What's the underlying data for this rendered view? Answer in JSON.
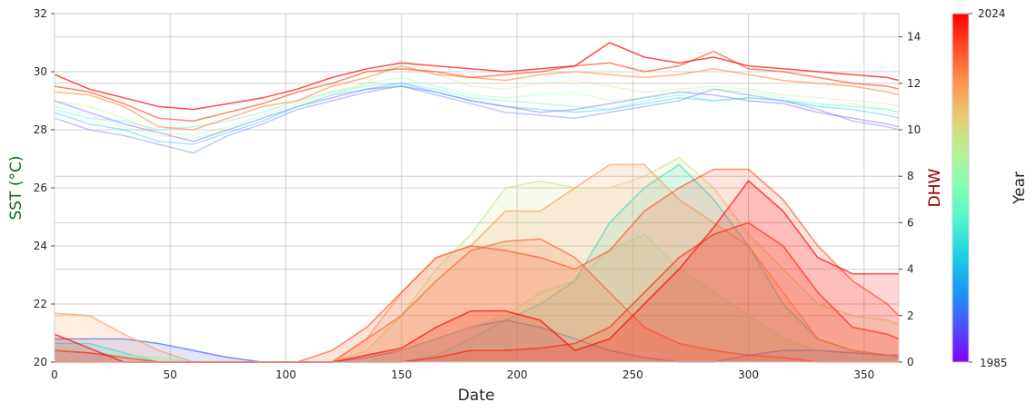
{
  "chart_data": {
    "type": "line",
    "xlabel": "Date",
    "ylabel_left": "SST (°C)",
    "ylabel_right": "DHW",
    "xlim": [
      0,
      365
    ],
    "ylim_left": [
      20,
      32
    ],
    "ylim_right": [
      0,
      15
    ],
    "xticks": [
      0,
      50,
      100,
      150,
      200,
      250,
      300,
      350
    ],
    "yticks_left": [
      20,
      22,
      24,
      26,
      28,
      30,
      32
    ],
    "yticks_right": [
      0,
      2,
      4,
      6,
      8,
      10,
      12,
      14
    ],
    "grid": true,
    "colors": {
      "left_label": "#0b6b0b",
      "right_label": "#8b0000",
      "grid": "#d0d0d0"
    },
    "colorbar": {
      "label": "Year",
      "min": 1985,
      "max": 2024,
      "min_label": "1985",
      "max_label": "2024",
      "cmap": "rainbow",
      "placement": "right"
    },
    "x": [
      0,
      15,
      30,
      45,
      60,
      75,
      90,
      105,
      120,
      135,
      150,
      165,
      180,
      195,
      210,
      225,
      240,
      255,
      270,
      285,
      300,
      315,
      330,
      345,
      360,
      365
    ],
    "sst_series": [
      {
        "year": 1987,
        "values": [
          29.0,
          28.6,
          28.2,
          27.9,
          27.6,
          28.0,
          28.4,
          28.8,
          29.1,
          29.4,
          29.5,
          29.3,
          29.0,
          28.8,
          28.6,
          28.7,
          28.9,
          29.1,
          29.3,
          29.2,
          29.0,
          28.9,
          28.6,
          28.4,
          28.2,
          28.1
        ]
      },
      {
        "year": 1990,
        "values": [
          28.4,
          28.0,
          27.8,
          27.5,
          27.2,
          27.8,
          28.2,
          28.7,
          29.0,
          29.3,
          29.5,
          29.2,
          28.9,
          28.6,
          28.5,
          28.4,
          28.6,
          28.8,
          29.0,
          29.4,
          29.2,
          29.0,
          28.7,
          28.3,
          28.1,
          28.0
        ]
      },
      {
        "year": 1995,
        "values": [
          28.6,
          28.2,
          28.0,
          27.6,
          27.5,
          27.9,
          28.3,
          28.8,
          29.2,
          29.4,
          29.6,
          29.3,
          29.0,
          28.8,
          28.7,
          28.6,
          28.7,
          28.9,
          29.1,
          29.0,
          29.1,
          29.0,
          28.8,
          28.7,
          28.5,
          28.4
        ]
      },
      {
        "year": 2000,
        "values": [
          28.7,
          28.4,
          28.3,
          28.0,
          28.1,
          28.3,
          28.6,
          29.0,
          29.3,
          29.5,
          29.6,
          29.4,
          29.1,
          29.0,
          28.9,
          28.8,
          28.7,
          29.0,
          29.2,
          29.0,
          29.1,
          29.0,
          28.9,
          28.8,
          28.7,
          28.6
        ]
      },
      {
        "year": 2005,
        "values": [
          28.8,
          28.5,
          28.1,
          27.8,
          27.7,
          28.0,
          28.4,
          28.8,
          29.2,
          29.6,
          29.8,
          29.5,
          29.2,
          29.1,
          29.2,
          29.3,
          29.0,
          29.1,
          29.3,
          29.4,
          29.3,
          29.1,
          28.8,
          28.9,
          28.7,
          28.6
        ]
      },
      {
        "year": 2010,
        "values": [
          29.0,
          28.8,
          28.4,
          27.9,
          27.8,
          28.1,
          28.5,
          28.9,
          29.3,
          29.6,
          30.4,
          29.9,
          29.5,
          29.4,
          29.6,
          29.7,
          29.5,
          29.3,
          29.4,
          29.5,
          29.4,
          29.2,
          29.1,
          29.0,
          28.9,
          28.8
        ]
      },
      {
        "year": 2016,
        "values": [
          29.3,
          29.2,
          28.8,
          28.1,
          28.0,
          28.4,
          28.8,
          29.0,
          29.5,
          29.8,
          30.2,
          29.9,
          29.8,
          29.7,
          29.9,
          30.0,
          29.9,
          29.8,
          29.9,
          30.1,
          29.9,
          29.7,
          29.6,
          29.5,
          29.3,
          29.2
        ]
      },
      {
        "year": 2020,
        "values": [
          29.5,
          29.3,
          28.9,
          28.4,
          28.3,
          28.6,
          28.9,
          29.3,
          29.6,
          30.0,
          30.1,
          30.0,
          29.8,
          29.9,
          30.0,
          30.2,
          30.3,
          30.0,
          30.2,
          30.7,
          30.1,
          30.0,
          29.8,
          29.6,
          29.5,
          29.4
        ]
      },
      {
        "year": 2024,
        "values": [
          29.9,
          29.4,
          29.1,
          28.8,
          28.7,
          28.9,
          29.1,
          29.4,
          29.8,
          30.1,
          30.3,
          30.2,
          30.1,
          30.0,
          30.1,
          30.2,
          31.0,
          30.5,
          30.3,
          30.5,
          30.2,
          30.1,
          30.0,
          29.9,
          29.8,
          29.7
        ]
      }
    ],
    "dhw_series": [
      {
        "year": 1990,
        "values": [
          1.0,
          1.0,
          1.0,
          0.8,
          0.5,
          0.2,
          0,
          0,
          0,
          0.2,
          0.5,
          1.0,
          1.5,
          1.8,
          1.5,
          1.0,
          0.5,
          0.2,
          0,
          0,
          0.3,
          0.5,
          0.5,
          0.4,
          0.3,
          0.3
        ]
      },
      {
        "year": 1998,
        "values": [
          0.8,
          0.8,
          0.4,
          0,
          0,
          0,
          0,
          0,
          0,
          0,
          0,
          0.3,
          1.0,
          1.8,
          2.5,
          3.5,
          6.0,
          7.5,
          8.5,
          7.0,
          5.0,
          2.5,
          1.0,
          0.5,
          0.3,
          0.2
        ]
      },
      {
        "year": 2005,
        "values": [
          0.6,
          0.4,
          0.3,
          0.2,
          0,
          0,
          0,
          0,
          0,
          0,
          0.5,
          1.0,
          1.5,
          2.0,
          3.0,
          3.5,
          4.8,
          5.5,
          4.0,
          3.0,
          2.0,
          1.0,
          0.5,
          0.2,
          0.1,
          0
        ]
      },
      {
        "year": 2010,
        "values": [
          0,
          0,
          0,
          0,
          0,
          0,
          0,
          0,
          0,
          0.5,
          2.0,
          4.0,
          5.5,
          7.5,
          7.8,
          7.5,
          7.5,
          8.0,
          8.8,
          7.5,
          5.5,
          4.0,
          2.5,
          2.0,
          1.8,
          1.6
        ]
      },
      {
        "year": 2016,
        "values": [
          2.1,
          2.0,
          1.2,
          0.5,
          0,
          0,
          0,
          0,
          0,
          1.0,
          3.0,
          4.5,
          5.0,
          6.5,
          6.5,
          7.5,
          8.5,
          8.5,
          7.0,
          6.0,
          5.0,
          3.0,
          1.0,
          0.5,
          0.3,
          0.2
        ]
      },
      {
        "year": 2019,
        "values": [
          0,
          0,
          0,
          0,
          0,
          0,
          0,
          0,
          0,
          1.0,
          2.0,
          3.5,
          4.8,
          5.2,
          5.3,
          4.5,
          3.0,
          1.5,
          0.8,
          0.5,
          0.3,
          0.2,
          0,
          0,
          0,
          0
        ]
      },
      {
        "year": 2020,
        "values": [
          0,
          0,
          0,
          0,
          0,
          0,
          0,
          0,
          0.5,
          1.5,
          3.0,
          4.5,
          5.0,
          4.8,
          4.5,
          4.0,
          4.8,
          6.5,
          7.5,
          8.3,
          8.3,
          7.0,
          5.0,
          3.5,
          2.5,
          2.0
        ]
      },
      {
        "year": 2022,
        "values": [
          0.5,
          0.4,
          0.2,
          0,
          0,
          0,
          0,
          0,
          0,
          0,
          0,
          0.2,
          0.5,
          0.5,
          0.6,
          0.8,
          1.5,
          3.0,
          4.5,
          5.5,
          6.0,
          5.0,
          3.0,
          1.5,
          1.2,
          1.0
        ]
      },
      {
        "year": 2024,
        "values": [
          1.2,
          0.6,
          0,
          0,
          0,
          0,
          0,
          0,
          0,
          0.3,
          0.6,
          1.5,
          2.2,
          2.2,
          1.8,
          0.5,
          1.0,
          2.5,
          4.0,
          5.8,
          7.8,
          6.5,
          4.5,
          3.8,
          3.8,
          3.8
        ]
      }
    ]
  }
}
